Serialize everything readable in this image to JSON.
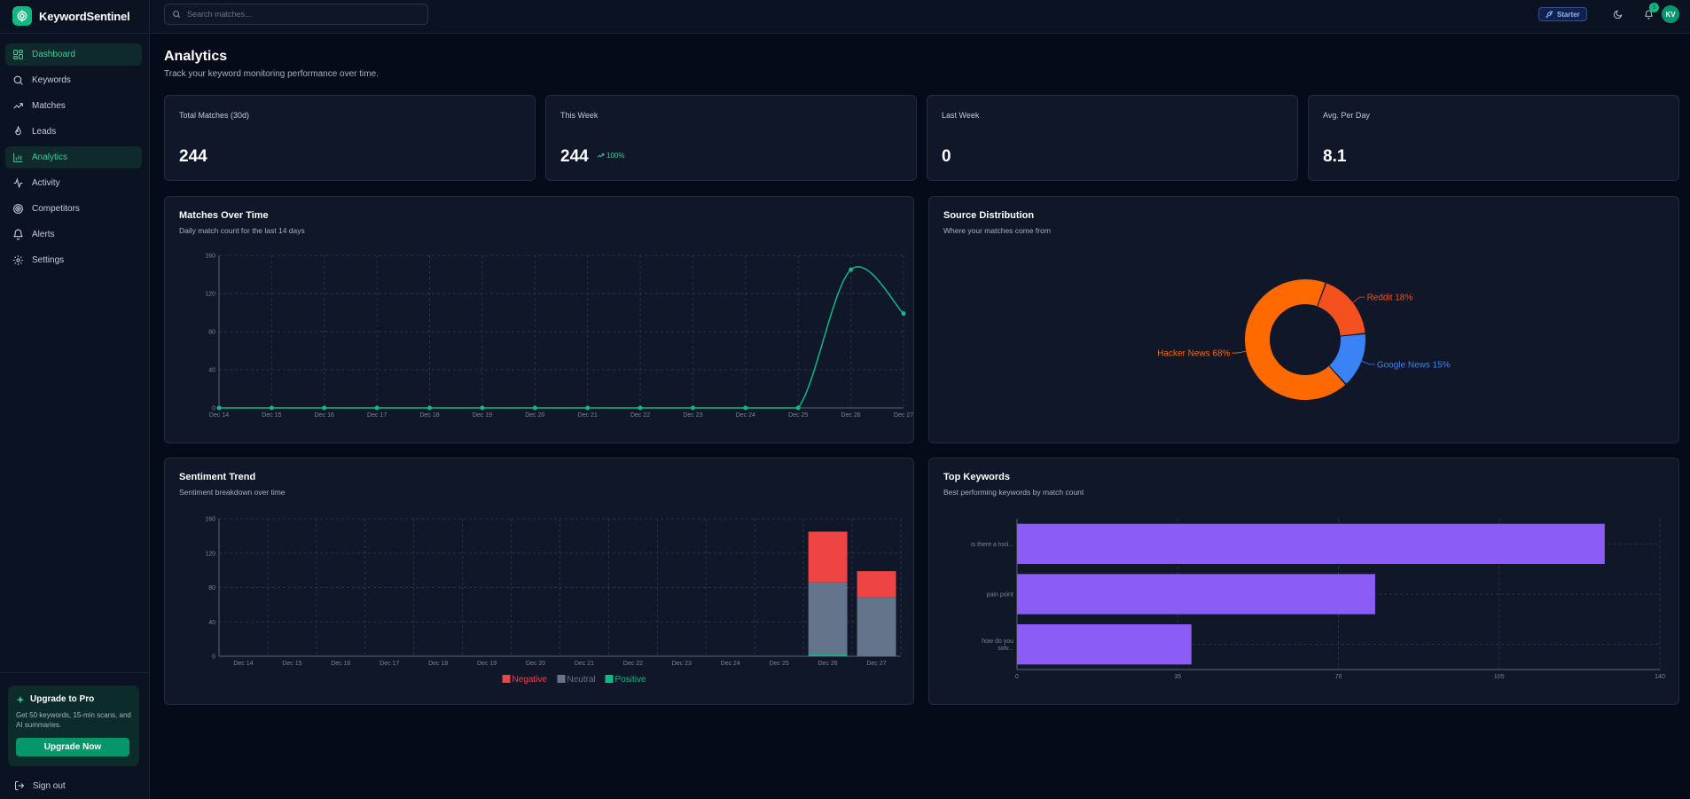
{
  "brand": {
    "name": "KeywordSentinel"
  },
  "search": {
    "placeholder": "Search matches..."
  },
  "header": {
    "plan": "Starter",
    "notifications": "5",
    "avatar": "KV"
  },
  "sidebar": {
    "items": [
      {
        "label": "Dashboard",
        "icon": "dashboard-icon",
        "active": true
      },
      {
        "label": "Keywords",
        "icon": "search-icon",
        "active": false
      },
      {
        "label": "Matches",
        "icon": "trending-up-icon",
        "active": false
      },
      {
        "label": "Leads",
        "icon": "flame-icon",
        "active": false
      },
      {
        "label": "Analytics",
        "icon": "bar-chart-icon",
        "active": true
      },
      {
        "label": "Activity",
        "icon": "activity-icon",
        "active": false
      },
      {
        "label": "Competitors",
        "icon": "target-icon",
        "active": false
      },
      {
        "label": "Alerts",
        "icon": "bell-icon",
        "active": false
      },
      {
        "label": "Settings",
        "icon": "gear-icon",
        "active": false
      }
    ],
    "upgrade": {
      "title": "Upgrade to Pro",
      "description": "Get 50 keywords, 15-min scans, and AI summaries.",
      "button": "Upgrade Now"
    },
    "signout": "Sign out"
  },
  "page": {
    "title": "Analytics",
    "subtitle": "Track your keyword monitoring performance over time."
  },
  "stats": [
    {
      "label": "Total Matches (30d)",
      "value": "244"
    },
    {
      "label": "This Week",
      "value": "244",
      "change": "100%"
    },
    {
      "label": "Last Week",
      "value": "0"
    },
    {
      "label": "Avg. Per Day",
      "value": "8.1"
    }
  ],
  "cards": {
    "matches": {
      "title": "Matches Over Time",
      "subtitle": "Daily match count for the last 14 days"
    },
    "source": {
      "title": "Source Distribution",
      "subtitle": "Where your matches come from"
    },
    "sentiment": {
      "title": "Sentiment Trend",
      "subtitle": "Sentiment breakdown over time"
    },
    "keywords": {
      "title": "Top Keywords",
      "subtitle": "Best performing keywords by match count"
    }
  },
  "chart_data": [
    {
      "type": "line",
      "title": "Matches Over Time",
      "x": [
        "Dec 14",
        "Dec 15",
        "Dec 16",
        "Dec 17",
        "Dec 18",
        "Dec 19",
        "Dec 20",
        "Dec 21",
        "Dec 22",
        "Dec 23",
        "Dec 24",
        "Dec 25",
        "Dec 26",
        "Dec 27"
      ],
      "values": [
        0,
        0,
        0,
        0,
        0,
        0,
        0,
        0,
        0,
        0,
        0,
        0,
        145,
        99
      ],
      "ylim": [
        0,
        160
      ],
      "yticks": [
        0,
        40,
        80,
        120,
        160
      ],
      "grid": true,
      "color": "#10b981"
    },
    {
      "type": "pie",
      "title": "Source Distribution",
      "slices": [
        {
          "name": "Reddit",
          "value": 18,
          "label": "Reddit 18%",
          "color": "#f4511e"
        },
        {
          "name": "Google News",
          "value": 15,
          "label": "Google News 15%",
          "color": "#3b82f6"
        },
        {
          "name": "Hacker News",
          "value": 68,
          "label": "Hacker News 68%",
          "color": "#ff6a00"
        }
      ]
    },
    {
      "type": "bar",
      "title": "Sentiment Trend",
      "stacked": true,
      "categories": [
        "Dec 14",
        "Dec 15",
        "Dec 16",
        "Dec 17",
        "Dec 18",
        "Dec 19",
        "Dec 20",
        "Dec 21",
        "Dec 22",
        "Dec 23",
        "Dec 24",
        "Dec 25",
        "Dec 26",
        "Dec 27"
      ],
      "series": [
        {
          "name": "Positive",
          "color": "#10b981",
          "values": [
            0,
            0,
            0,
            0,
            0,
            0,
            0,
            0,
            0,
            0,
            0,
            0,
            2,
            0
          ]
        },
        {
          "name": "Neutral",
          "color": "#64748b",
          "values": [
            0,
            0,
            0,
            0,
            0,
            0,
            0,
            0,
            0,
            0,
            0,
            0,
            84,
            69
          ]
        },
        {
          "name": "Negative",
          "color": "#ef4444",
          "values": [
            0,
            0,
            0,
            0,
            0,
            0,
            0,
            0,
            0,
            0,
            0,
            0,
            59,
            30
          ]
        }
      ],
      "legend_order": [
        "Negative",
        "Neutral",
        "Positive"
      ],
      "ylim": [
        0,
        160
      ],
      "yticks": [
        0,
        40,
        80,
        120,
        160
      ],
      "legend": "bottom"
    },
    {
      "type": "bar",
      "orientation": "horizontal",
      "title": "Top Keywords",
      "categories": [
        "is there a tool...",
        "pain point",
        "how do you solv..."
      ],
      "category_lines": [
        [
          "is there a tool..."
        ],
        [
          "pain point"
        ],
        [
          "how do you",
          "solv..."
        ]
      ],
      "values": [
        128,
        78,
        38
      ],
      "xlim": [
        0,
        140
      ],
      "xticks": [
        0,
        35,
        70,
        105,
        140
      ],
      "color": "#8b5cf6"
    }
  ]
}
